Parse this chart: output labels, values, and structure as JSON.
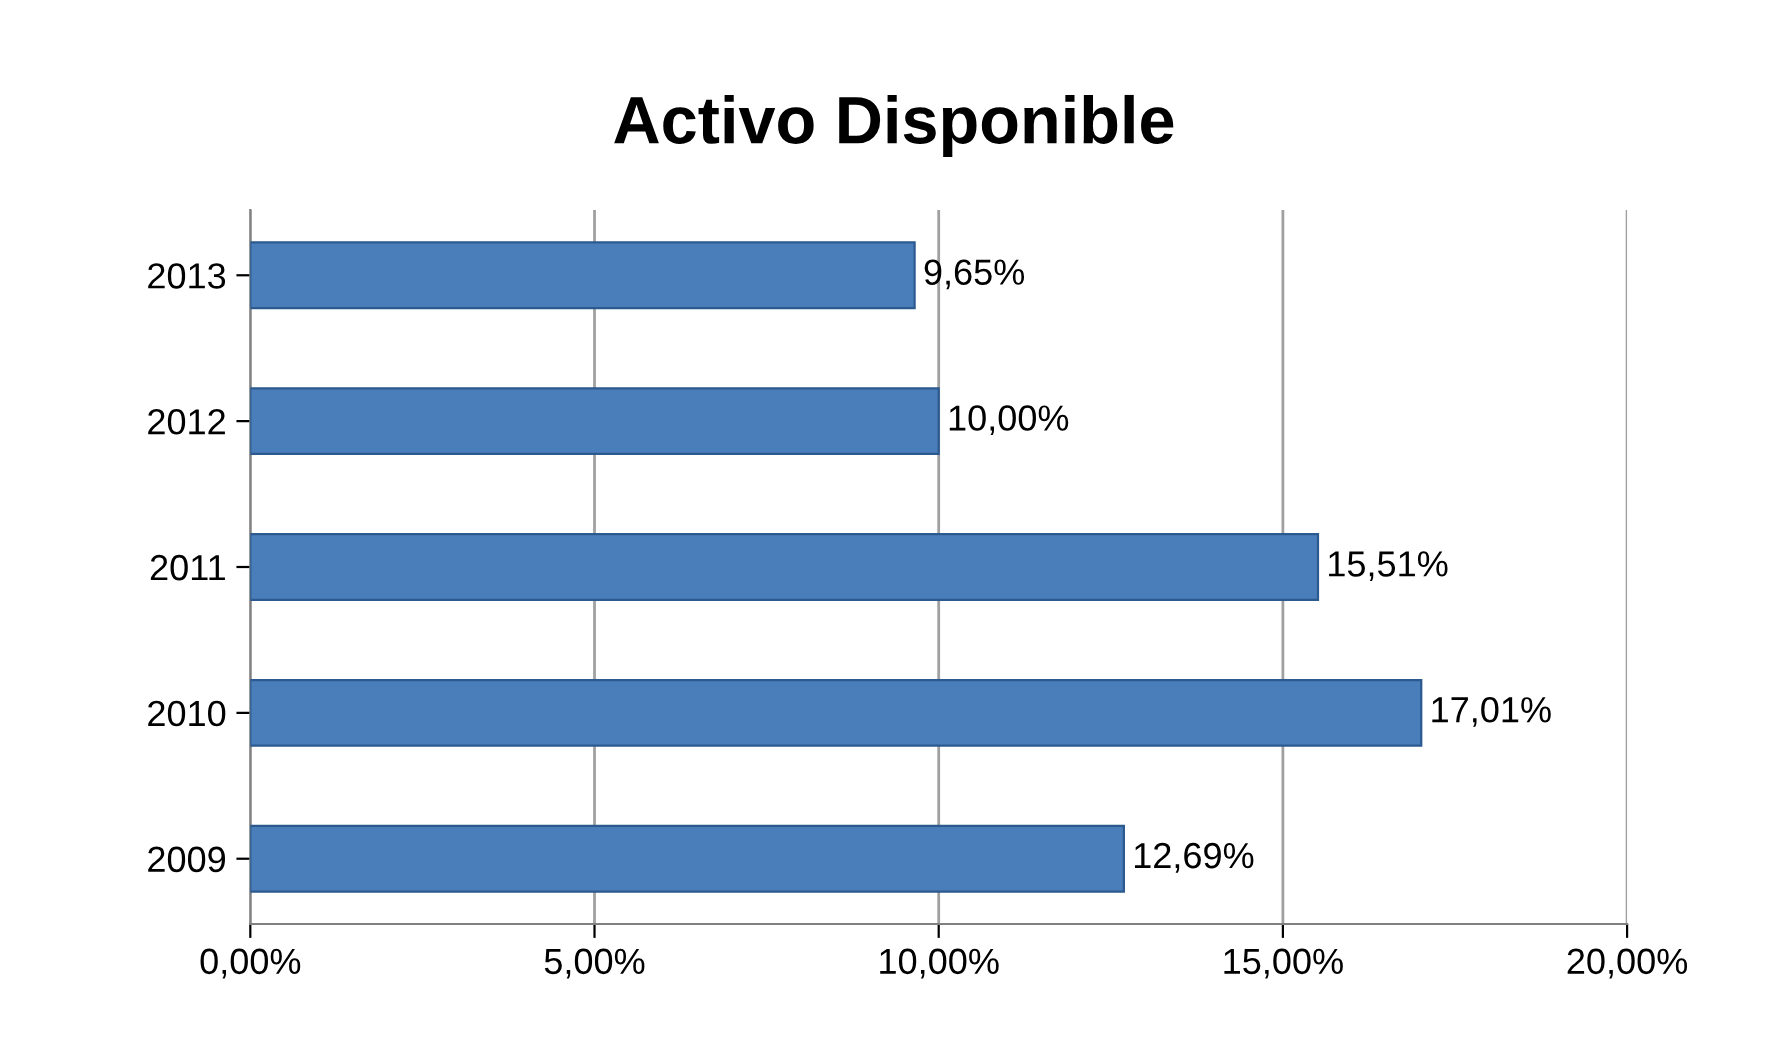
{
  "chart_data": {
    "type": "bar",
    "orientation": "horizontal",
    "title": "Activo Disponible",
    "categories": [
      "2013",
      "2012",
      "2011",
      "2010",
      "2009"
    ],
    "values": [
      9.65,
      10.0,
      15.51,
      17.01,
      12.69
    ],
    "value_labels": [
      "9,65%",
      "10,00%",
      "15,51%",
      "17,01%",
      "12,69%"
    ],
    "color": "#4a7ebb",
    "xlim": [
      0,
      20
    ],
    "xticks": [
      {
        "value": 0,
        "label": "0,00%"
      },
      {
        "value": 5,
        "label": "5,00%"
      },
      {
        "value": 10,
        "label": "10,00%"
      },
      {
        "value": 15,
        "label": "15,00%"
      },
      {
        "value": 20,
        "label": "20,00%"
      }
    ],
    "grid": "x",
    "legend": false
  }
}
